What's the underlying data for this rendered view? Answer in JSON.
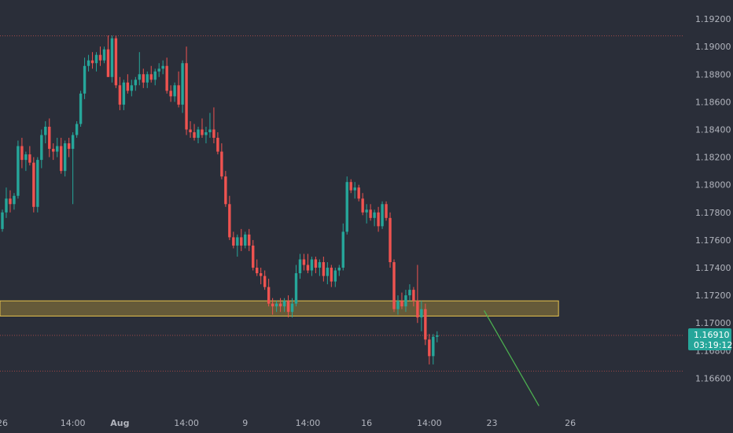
{
  "chart_data": {
    "type": "candlestick",
    "colors": {
      "background": "#2a2e39",
      "up": "#26a69a",
      "down": "#ef5350",
      "zone_fill": "#7a6a3a",
      "zone_border": "#e6c34d",
      "projection": "#4caf50",
      "price_tag": "#26a69a"
    },
    "y_axis": {
      "ylim": [
        1.165,
        1.1932
      ],
      "ticks": [
        "1.19200",
        "1.19000",
        "1.18800",
        "1.18600",
        "1.18400",
        "1.18200",
        "1.18000",
        "1.17800",
        "1.17600",
        "1.17400",
        "1.17200",
        "1.17000",
        "1.16800",
        "1.16600"
      ]
    },
    "x_axis": {
      "labels": [
        {
          "text": "26",
          "index": 0
        },
        {
          "text": "14:00",
          "index": 18
        },
        {
          "text": "Aug",
          "index": 30,
          "bold": true
        },
        {
          "text": "14:00",
          "index": 47
        },
        {
          "text": "9",
          "index": 62
        },
        {
          "text": "14:00",
          "index": 78
        },
        {
          "text": "16",
          "index": 93
        },
        {
          "text": "14:00",
          "index": 109
        },
        {
          "text": "23",
          "index": 125
        },
        {
          "text": "26",
          "index": 145
        }
      ]
    },
    "candles": [
      [
        1.1768,
        1.1782,
        1.1766,
        1.178
      ],
      [
        1.178,
        1.1798,
        1.1776,
        1.179
      ],
      [
        1.179,
        1.1796,
        1.178,
        1.1786
      ],
      [
        1.1786,
        1.1794,
        1.1782,
        1.1792
      ],
      [
        1.1792,
        1.1832,
        1.179,
        1.1828
      ],
      [
        1.1828,
        1.1834,
        1.1812,
        1.1818
      ],
      [
        1.1818,
        1.1824,
        1.181,
        1.1822
      ],
      [
        1.1822,
        1.1828,
        1.1814,
        1.1816
      ],
      [
        1.1816,
        1.182,
        1.178,
        1.1784
      ],
      [
        1.1784,
        1.182,
        1.178,
        1.1818
      ],
      [
        1.1818,
        1.184,
        1.1812,
        1.1836
      ],
      [
        1.1836,
        1.1846,
        1.183,
        1.1842
      ],
      [
        1.1842,
        1.1848,
        1.182,
        1.1826
      ],
      [
        1.1826,
        1.183,
        1.1818,
        1.1824
      ],
      [
        1.1824,
        1.1834,
        1.182,
        1.1828
      ],
      [
        1.1828,
        1.1834,
        1.1808,
        1.181
      ],
      [
        1.181,
        1.1832,
        1.1806,
        1.183
      ],
      [
        1.183,
        1.1834,
        1.182,
        1.1826
      ],
      [
        1.1826,
        1.1838,
        1.1786,
        1.1836
      ],
      [
        1.1836,
        1.1846,
        1.1834,
        1.1844
      ],
      [
        1.1844,
        1.1868,
        1.1842,
        1.1866
      ],
      [
        1.1866,
        1.1892,
        1.1862,
        1.1886
      ],
      [
        1.1886,
        1.1894,
        1.1882,
        1.189
      ],
      [
        1.189,
        1.1896,
        1.1884,
        1.1888
      ],
      [
        1.1888,
        1.1896,
        1.1882,
        1.1894
      ],
      [
        1.1894,
        1.19,
        1.1886,
        1.189
      ],
      [
        1.189,
        1.19,
        1.1888,
        1.1898
      ],
      [
        1.1898,
        1.1908,
        1.1878,
        1.1878
      ],
      [
        1.1878,
        1.1908,
        1.1874,
        1.1906
      ],
      [
        1.1906,
        1.1908,
        1.187,
        1.1872
      ],
      [
        1.1872,
        1.1878,
        1.1854,
        1.1858
      ],
      [
        1.1858,
        1.1876,
        1.1854,
        1.1874
      ],
      [
        1.1874,
        1.188,
        1.1866,
        1.1868
      ],
      [
        1.1868,
        1.1876,
        1.1864,
        1.1872
      ],
      [
        1.1872,
        1.1878,
        1.1868,
        1.1876
      ],
      [
        1.1876,
        1.1896,
        1.1872,
        1.188
      ],
      [
        1.188,
        1.1884,
        1.187,
        1.1874
      ],
      [
        1.1874,
        1.1882,
        1.187,
        1.188
      ],
      [
        1.188,
        1.1886,
        1.1874,
        1.1876
      ],
      [
        1.1876,
        1.1884,
        1.1872,
        1.1882
      ],
      [
        1.1882,
        1.1888,
        1.1878,
        1.1884
      ],
      [
        1.1884,
        1.189,
        1.188,
        1.1886
      ],
      [
        1.1886,
        1.1892,
        1.1866,
        1.1868
      ],
      [
        1.1868,
        1.1872,
        1.186,
        1.1864
      ],
      [
        1.1864,
        1.1874,
        1.186,
        1.1872
      ],
      [
        1.1872,
        1.1882,
        1.1856,
        1.1858
      ],
      [
        1.1858,
        1.189,
        1.1852,
        1.1888
      ],
      [
        1.1888,
        1.19,
        1.1836,
        1.184
      ],
      [
        1.184,
        1.1846,
        1.1834,
        1.1838
      ],
      [
        1.1838,
        1.1844,
        1.1832,
        1.1834
      ],
      [
        1.1834,
        1.1842,
        1.183,
        1.184
      ],
      [
        1.184,
        1.1848,
        1.1834,
        1.1836
      ],
      [
        1.1836,
        1.1842,
        1.183,
        1.1838
      ],
      [
        1.1838,
        1.1852,
        1.1834,
        1.184
      ],
      [
        1.184,
        1.1856,
        1.183,
        1.1834
      ],
      [
        1.1834,
        1.1838,
        1.1822,
        1.1824
      ],
      [
        1.1824,
        1.183,
        1.1804,
        1.1806
      ],
      [
        1.1806,
        1.181,
        1.1784,
        1.1786
      ],
      [
        1.1786,
        1.1792,
        1.176,
        1.1762
      ],
      [
        1.1762,
        1.1766,
        1.1754,
        1.1756
      ],
      [
        1.1756,
        1.1764,
        1.1748,
        1.1762
      ],
      [
        1.1762,
        1.1768,
        1.1752,
        1.1756
      ],
      [
        1.1756,
        1.1766,
        1.1754,
        1.1764
      ],
      [
        1.1764,
        1.1768,
        1.1752,
        1.1756
      ],
      [
        1.1756,
        1.176,
        1.1738,
        1.174
      ],
      [
        1.174,
        1.1746,
        1.1734,
        1.1736
      ],
      [
        1.1736,
        1.174,
        1.1728,
        1.1734
      ],
      [
        1.1734,
        1.1738,
        1.1724,
        1.1726
      ],
      [
        1.1726,
        1.1732,
        1.1712,
        1.1714
      ],
      [
        1.1714,
        1.1718,
        1.1706,
        1.1712
      ],
      [
        1.1712,
        1.1716,
        1.1708,
        1.1714
      ],
      [
        1.1714,
        1.1718,
        1.1708,
        1.1712
      ],
      [
        1.1712,
        1.1718,
        1.1708,
        1.1716
      ],
      [
        1.1716,
        1.172,
        1.1704,
        1.1708
      ],
      [
        1.1708,
        1.1718,
        1.1704,
        1.1714
      ],
      [
        1.1714,
        1.1742,
        1.1712,
        1.1736
      ],
      [
        1.1736,
        1.175,
        1.1732,
        1.1746
      ],
      [
        1.1746,
        1.175,
        1.1738,
        1.1742
      ],
      [
        1.1742,
        1.175,
        1.1736,
        1.1738
      ],
      [
        1.1738,
        1.1748,
        1.1734,
        1.1746
      ],
      [
        1.1746,
        1.1748,
        1.1736,
        1.174
      ],
      [
        1.174,
        1.1746,
        1.1734,
        1.1744
      ],
      [
        1.1744,
        1.1748,
        1.173,
        1.1734
      ],
      [
        1.1734,
        1.1744,
        1.1728,
        1.174
      ],
      [
        1.174,
        1.1742,
        1.1726,
        1.173
      ],
      [
        1.173,
        1.174,
        1.1726,
        1.1738
      ],
      [
        1.1738,
        1.1742,
        1.1734,
        1.174
      ],
      [
        1.174,
        1.1772,
        1.1738,
        1.1766
      ],
      [
        1.1766,
        1.1806,
        1.1764,
        1.1802
      ],
      [
        1.1802,
        1.1804,
        1.1794,
        1.1796
      ],
      [
        1.1796,
        1.1802,
        1.179,
        1.1798
      ],
      [
        1.1798,
        1.18,
        1.1788,
        1.179
      ],
      [
        1.179,
        1.1794,
        1.1778,
        1.178
      ],
      [
        1.178,
        1.1786,
        1.1772,
        1.1782
      ],
      [
        1.1782,
        1.1786,
        1.1774,
        1.1776
      ],
      [
        1.1776,
        1.1782,
        1.177,
        1.178
      ],
      [
        1.178,
        1.1784,
        1.1766,
        1.177
      ],
      [
        1.177,
        1.1788,
        1.1768,
        1.1786
      ],
      [
        1.1786,
        1.1788,
        1.1774,
        1.1776
      ],
      [
        1.1776,
        1.178,
        1.174,
        1.1744
      ],
      [
        1.1744,
        1.1746,
        1.1708,
        1.171
      ],
      [
        1.171,
        1.172,
        1.1706,
        1.1716
      ],
      [
        1.1716,
        1.1722,
        1.171,
        1.1712
      ],
      [
        1.1712,
        1.1724,
        1.1708,
        1.172
      ],
      [
        1.172,
        1.1728,
        1.1716,
        1.1724
      ],
      [
        1.1724,
        1.1726,
        1.1712,
        1.1716
      ],
      [
        1.1716,
        1.1742,
        1.17,
        1.1704
      ],
      [
        1.1704,
        1.1716,
        1.1694,
        1.171
      ],
      [
        1.171,
        1.1714,
        1.1684,
        1.1688
      ],
      [
        1.1688,
        1.1692,
        1.167,
        1.1676
      ],
      [
        1.1676,
        1.1692,
        1.167,
        1.169
      ],
      [
        1.169,
        1.1694,
        1.1686,
        1.1691
      ]
    ],
    "zone": {
      "from_index": 0,
      "to_index": 142,
      "low": 1.1705,
      "high": 1.1716
    },
    "projection_line": {
      "from": {
        "index": 123,
        "price": 1.1709
      },
      "to": {
        "index": 137,
        "price": 1.164
      }
    },
    "horizontal_lines": [
      {
        "price": 1.19078,
        "color": "#a04848"
      },
      {
        "price": 1.1691,
        "color": "#a04848"
      },
      {
        "price": 1.16652,
        "color": "#a04848"
      }
    ],
    "last_price": {
      "value": "1.16910",
      "price": 1.1691,
      "countdown": "03:19:12"
    }
  }
}
